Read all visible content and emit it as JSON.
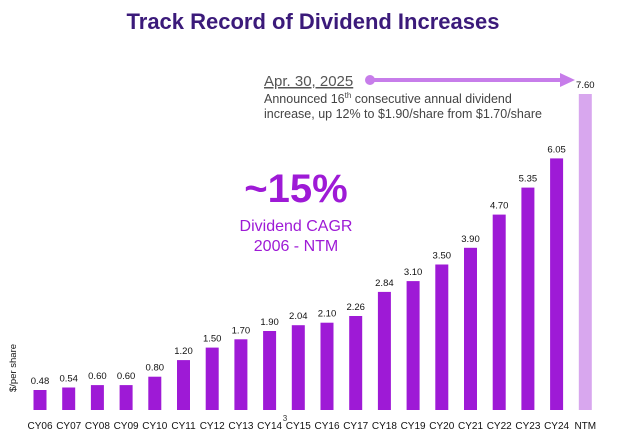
{
  "chart_data": {
    "type": "bar",
    "title": "Track Record of Dividend Increases",
    "ylabel": "$/per share",
    "xlabel": "",
    "ylim": [
      0,
      7.6
    ],
    "categories": [
      "CY06",
      "CY07",
      "CY08",
      "CY09",
      "CY10",
      "CY11",
      "CY12",
      "CY13",
      "CY14",
      "CY15",
      "CY16",
      "CY17",
      "CY18",
      "CY19",
      "CY20",
      "CY21",
      "CY22",
      "CY23",
      "CY24",
      "NTM"
    ],
    "values": [
      0.48,
      0.54,
      0.6,
      0.6,
      0.8,
      1.2,
      1.5,
      1.7,
      1.9,
      2.04,
      2.1,
      2.26,
      2.84,
      3.1,
      3.5,
      3.9,
      4.7,
      5.35,
      6.05,
      7.6
    ],
    "value_labels": [
      "0.48",
      "0.54",
      "0.60",
      "0.60",
      "0.80",
      "1.20",
      "1.50",
      "1.70",
      "1.90",
      "2.04",
      "2.10",
      "2.26",
      "2.84",
      "3.10",
      "3.50",
      "3.90",
      "4.70",
      "5.35",
      "6.05",
      "7.60"
    ],
    "colors": {
      "bar": "#9e1ad6",
      "bar_highlight": "#d8a7ee",
      "title": "#3b1a7a",
      "accent": "#9e1ad6",
      "arrow": "#c77dea"
    },
    "annotation": {
      "date": "Apr. 30, 2025",
      "line1_prefix": "Announced 16",
      "line1_sup": "th",
      "line1_suffix": " consecutive annual dividend",
      "line2": "increase, up 12% to $1.90/share from $1.70/share"
    },
    "cagr": {
      "value": "~15%",
      "label1": "Dividend CAGR",
      "label2": "2006 - NTM"
    },
    "footnote_marker": "3"
  }
}
